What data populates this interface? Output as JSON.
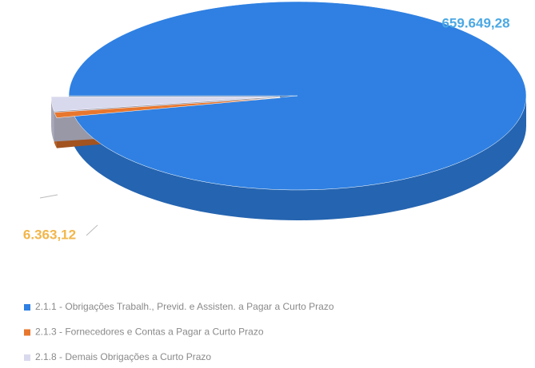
{
  "chart_data": {
    "type": "pie3d",
    "series": [
      {
        "name": "2.1.1 - Obrigações Trabalh., Previd. e Assisten. a Pagar a Curto Prazo",
        "color": "#2f80e2"
      },
      {
        "name": "2.1.3 - Fornecedores e Contas a Pagar a Curto Prazo",
        "color": "#e8772e"
      },
      {
        "name": "2.1.8 - Demais Obrigações a Curto Prazo",
        "color": "#d9d9ee"
      }
    ],
    "values": [
      659649.28,
      6363.12,
      17000
    ],
    "value_labels": [
      "659.649,28",
      "6.363,12",
      null
    ],
    "label_colors": [
      "#4aa8e4",
      "#f2b64a"
    ],
    "legend": "bottom-left"
  }
}
